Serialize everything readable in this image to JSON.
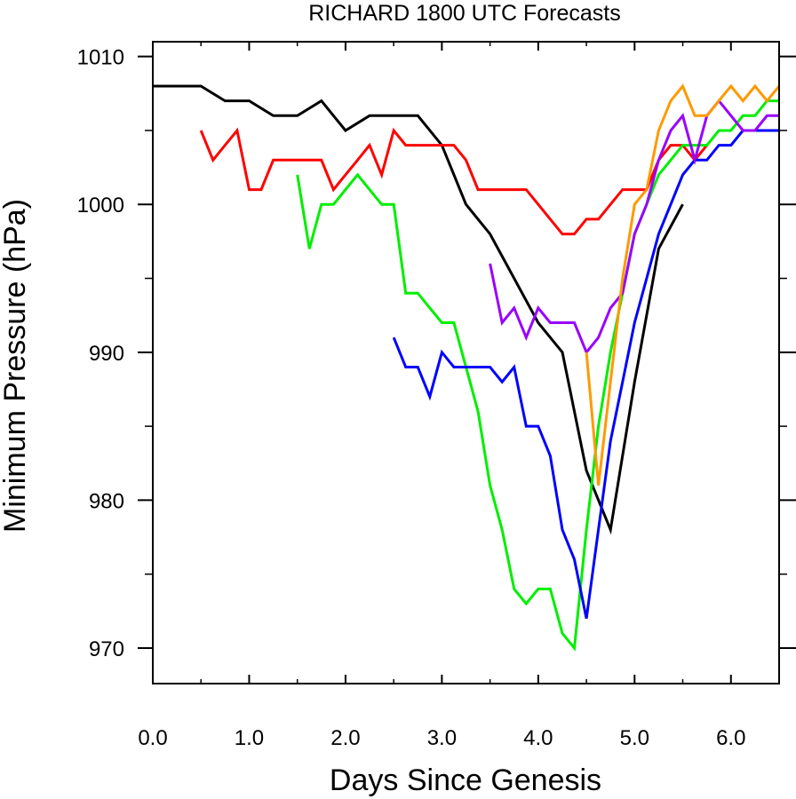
{
  "chart_data": {
    "type": "line",
    "title": "RICHARD 1800 UTC Forecasts",
    "xlabel": "Days Since Genesis",
    "ylabel": "Minimum Pressure (hPa)",
    "xlim": [
      0.0,
      6.5
    ],
    "ylim": [
      968,
      1010
    ],
    "xticks": [
      0.0,
      1.0,
      2.0,
      3.0,
      4.0,
      5.0,
      6.0
    ],
    "xtick_labels": [
      "0.0",
      "1.0",
      "2.0",
      "3.0",
      "4.0",
      "5.0",
      "6.0"
    ],
    "yticks": [
      970,
      980,
      990,
      1000,
      1010
    ],
    "ytick_labels": [
      "970",
      "980",
      "990",
      "1000",
      "1010"
    ],
    "grid": false,
    "series": [
      {
        "color": "#000000",
        "x": [
          0.0,
          0.5,
          0.75,
          1.0,
          1.25,
          1.5,
          1.75,
          2.0,
          2.25,
          2.5,
          2.75,
          3.0,
          3.25,
          3.5,
          3.75,
          4.0,
          4.25,
          4.5,
          4.75,
          5.0,
          5.25,
          5.5
        ],
        "y": [
          1008,
          1008,
          1007,
          1007,
          1006,
          1006,
          1007,
          1005,
          1006,
          1006,
          1006,
          1004,
          1000,
          998,
          995,
          992,
          990,
          982,
          978,
          988,
          997,
          1000
        ]
      },
      {
        "color": "#ff0000",
        "x": [
          0.5,
          0.625,
          0.75,
          0.875,
          1.0,
          1.125,
          1.25,
          1.375,
          1.5,
          1.625,
          1.75,
          1.875,
          2.0,
          2.125,
          2.25,
          2.375,
          2.5,
          2.625,
          2.75,
          2.875,
          3.0,
          3.125,
          3.25,
          3.375,
          3.5,
          3.625,
          3.75,
          3.875,
          4.0,
          4.125,
          4.25,
          4.375,
          4.5,
          4.625,
          4.75,
          4.875,
          5.0,
          5.125,
          5.25,
          5.375,
          5.5,
          5.625,
          5.75
        ],
        "y": [
          1005,
          1003,
          1004,
          1005,
          1001,
          1001,
          1003,
          1003,
          1003,
          1003,
          1003,
          1001,
          1002,
          1003,
          1004,
          1002,
          1005,
          1004,
          1004,
          1004,
          1004,
          1004,
          1003,
          1001,
          1001,
          1001,
          1001,
          1001,
          1000,
          999,
          998,
          998,
          999,
          999,
          1000,
          1001,
          1001,
          1001,
          1003,
          1004,
          1004,
          1003,
          1004
        ]
      },
      {
        "color": "#00ee00",
        "x": [
          1.5,
          1.625,
          1.75,
          1.875,
          2.0,
          2.125,
          2.25,
          2.375,
          2.5,
          2.625,
          2.75,
          2.875,
          3.0,
          3.125,
          3.25,
          3.375,
          3.5,
          3.625,
          3.75,
          3.875,
          4.0,
          4.125,
          4.25,
          4.375,
          4.5,
          4.625,
          4.75,
          4.875,
          5.0,
          5.125,
          5.25,
          5.375,
          5.5,
          5.625,
          5.75,
          5.875,
          6.0,
          6.125,
          6.25,
          6.375,
          6.5
        ],
        "y": [
          1002,
          997,
          1000,
          1000,
          1001,
          1002,
          1001,
          1000,
          1000,
          994,
          994,
          993,
          992,
          992,
          989,
          986,
          981,
          978,
          974,
          973,
          974,
          974,
          971,
          970,
          978,
          985,
          990,
          994,
          998,
          1000,
          1002,
          1003,
          1004,
          1004,
          1004,
          1005,
          1005,
          1006,
          1006,
          1007,
          1007
        ]
      },
      {
        "color": "#0000ff",
        "x": [
          2.5,
          2.625,
          2.75,
          2.875,
          3.0,
          3.125,
          3.25,
          3.375,
          3.5,
          3.625,
          3.75,
          3.875,
          4.0,
          4.125,
          4.25,
          4.375,
          4.5,
          4.625,
          4.75,
          4.875,
          5.0,
          5.125,
          5.25,
          5.375,
          5.5,
          5.625,
          5.75,
          5.875,
          6.0,
          6.125,
          6.25,
          6.375,
          6.5
        ],
        "y": [
          991,
          989,
          989,
          987,
          990,
          989,
          989,
          989,
          989,
          988,
          989,
          985,
          985,
          983,
          978,
          976,
          972,
          978,
          984,
          988,
          992,
          995,
          998,
          1000,
          1002,
          1003,
          1003,
          1004,
          1004,
          1005,
          1005,
          1005,
          1005
        ]
      },
      {
        "color": "#9900ff",
        "x": [
          3.5,
          3.625,
          3.75,
          3.875,
          4.0,
          4.125,
          4.25,
          4.375,
          4.5,
          4.625,
          4.75,
          4.875,
          5.0,
          5.125,
          5.25,
          5.375,
          5.5,
          5.625,
          5.75,
          5.875,
          6.0,
          6.125,
          6.25,
          6.375,
          6.5
        ],
        "y": [
          996,
          992,
          993,
          991,
          993,
          992,
          992,
          992,
          990,
          991,
          993,
          994,
          998,
          1000,
          1003,
          1005,
          1006,
          1003,
          1006,
          1007,
          1006,
          1005,
          1005,
          1006,
          1006
        ]
      },
      {
        "color": "#ff9900",
        "x": [
          4.5,
          4.625,
          4.75,
          4.875,
          5.0,
          5.125,
          5.25,
          5.375,
          5.5,
          5.625,
          5.75,
          5.875,
          6.0,
          6.125,
          6.25,
          6.375,
          6.5
        ],
        "y": [
          990,
          981,
          988,
          995,
          1000,
          1001,
          1005,
          1007,
          1008,
          1006,
          1006,
          1007,
          1008,
          1007,
          1008,
          1007,
          1008
        ]
      }
    ]
  }
}
